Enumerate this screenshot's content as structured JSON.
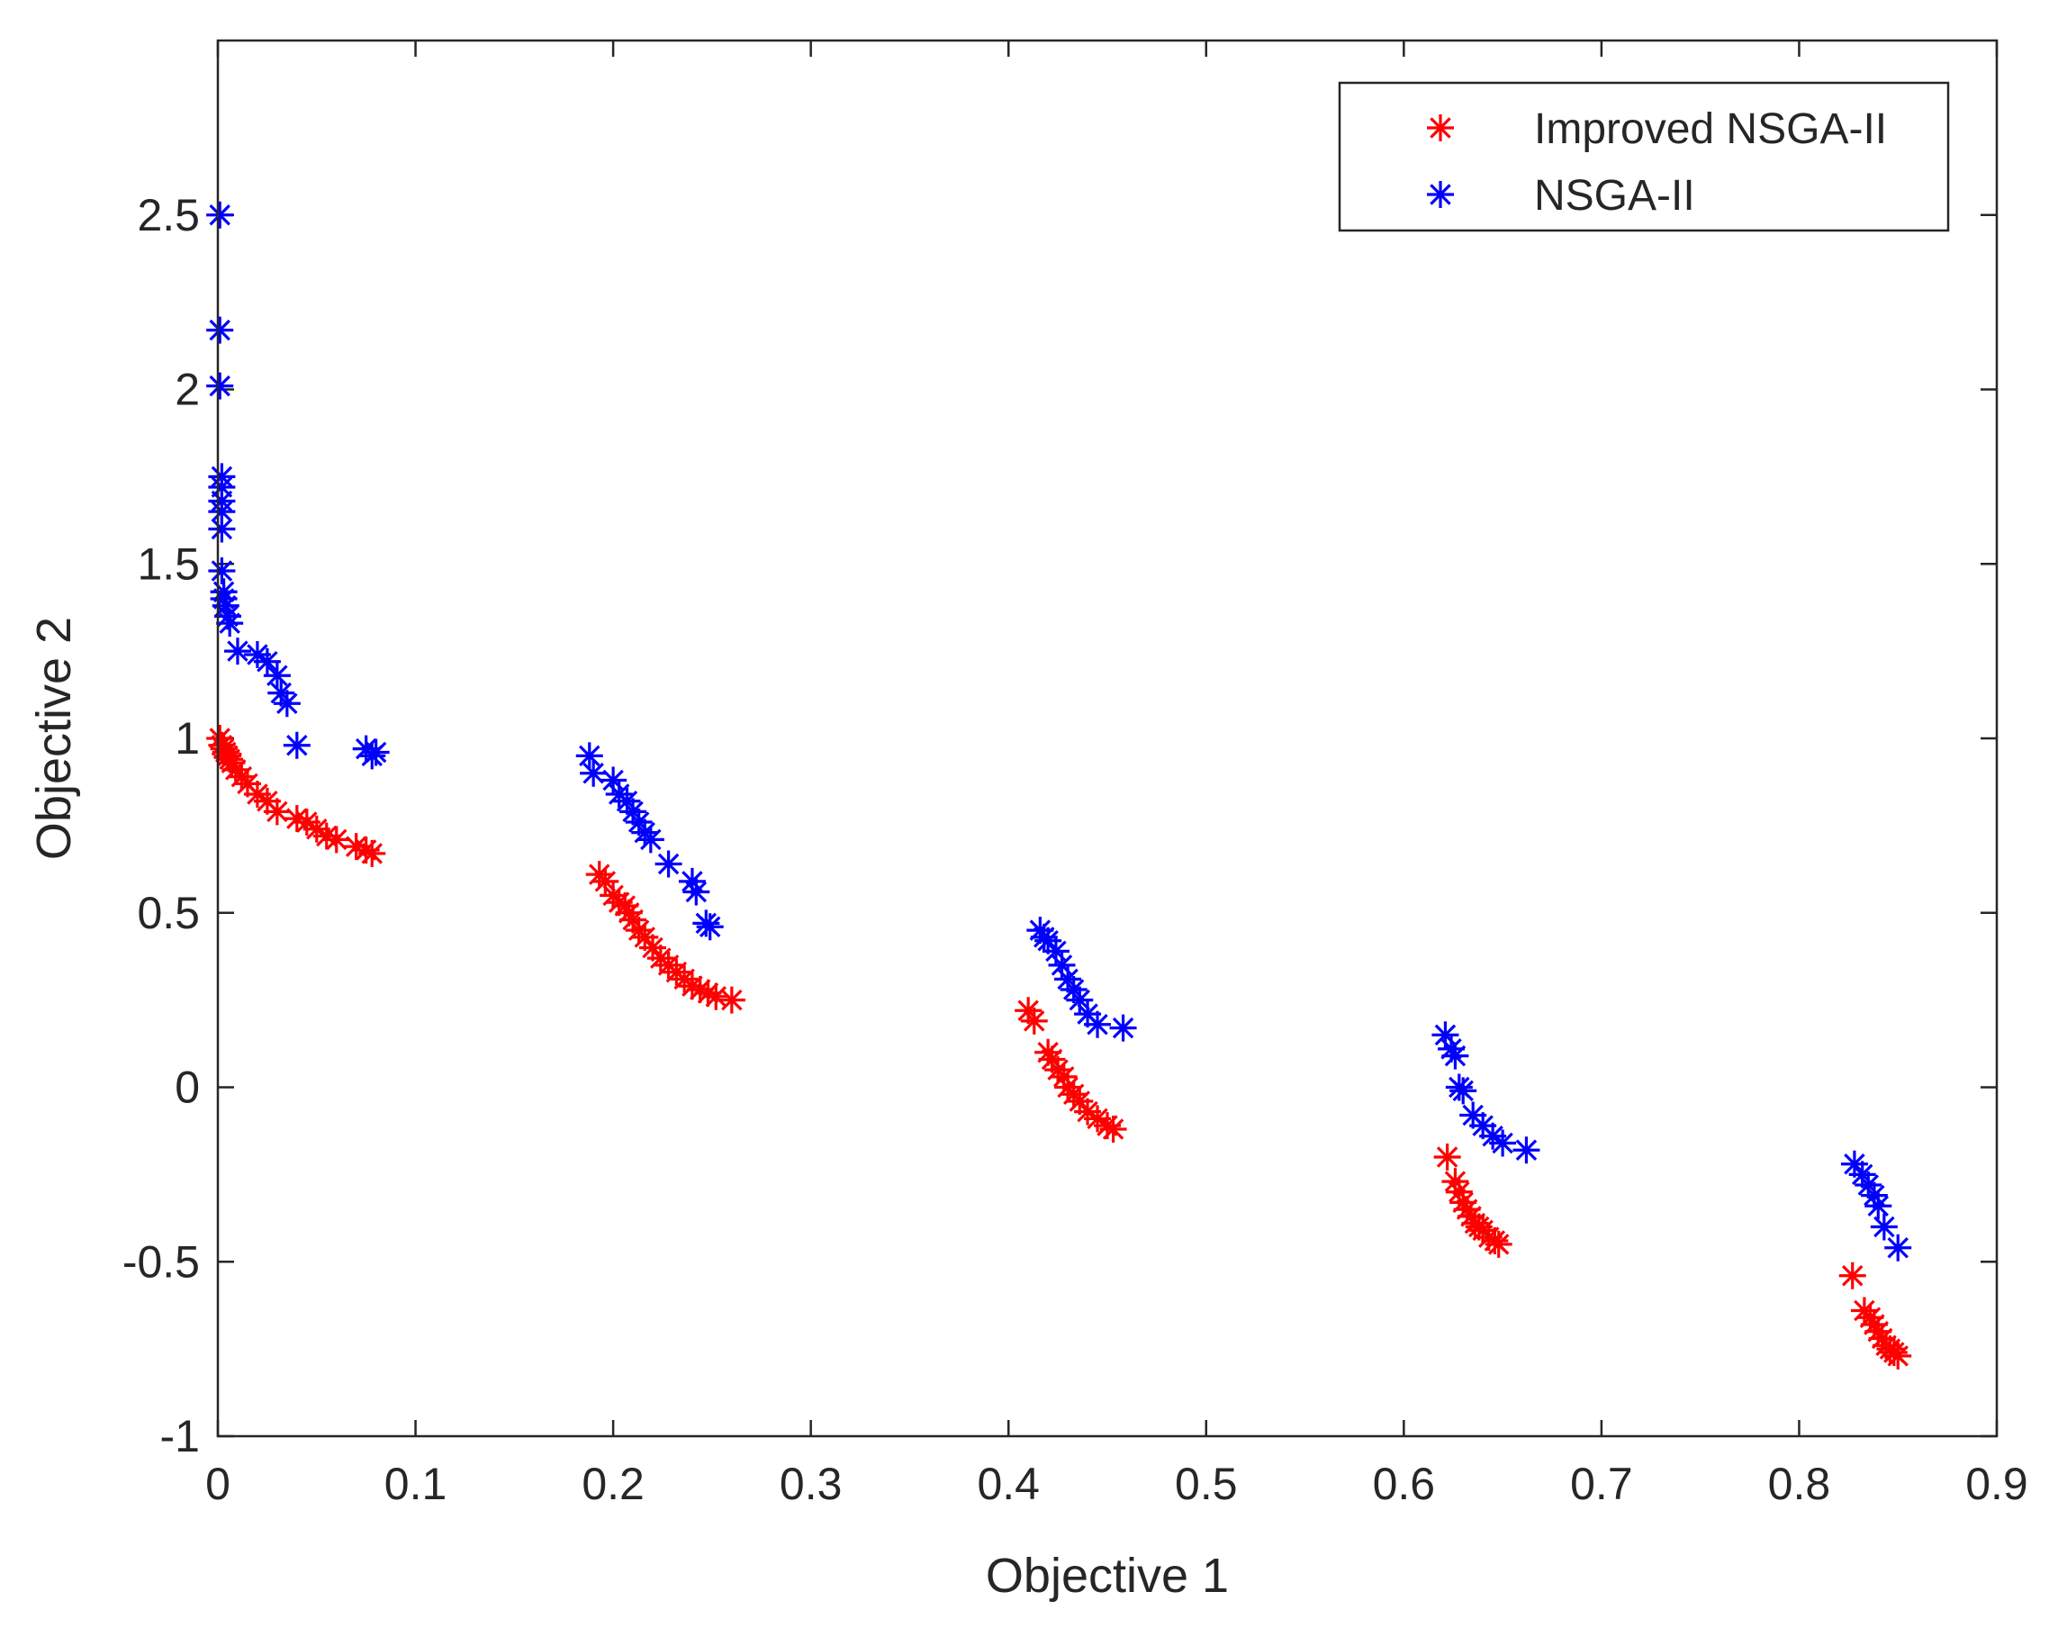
{
  "colors": {
    "improved": "#ff0000",
    "nsga": "#0000ff",
    "axis": "#262626",
    "background": "#ffffff"
  },
  "chart_data": {
    "type": "scatter",
    "title": "",
    "xlabel": "Objective 1",
    "ylabel": "Objective 2",
    "xlim": [
      0,
      0.9
    ],
    "ylim": [
      -1,
      3
    ],
    "xticks": [
      0,
      0.1,
      0.2,
      0.3,
      0.4,
      0.5,
      0.6,
      0.7,
      0.8,
      0.9
    ],
    "xtick_labels": [
      "0",
      "0.1",
      "0.2",
      "0.3",
      "0.4",
      "0.5",
      "0.6",
      "0.7",
      "0.8",
      "0.9"
    ],
    "yticks": [
      -1,
      -0.5,
      0,
      0.5,
      1,
      1.5,
      2,
      2.5
    ],
    "ytick_labels": [
      "-1",
      "-0.5",
      "0",
      "0.5",
      "1",
      "1.5",
      "2",
      "2.5"
    ],
    "marker": "asterisk",
    "legend": {
      "position": "top-right",
      "entries": [
        {
          "label": "Improved NSGA-II",
          "color": "#ff0000"
        },
        {
          "label": "NSGA-II",
          "color": "#0000ff"
        }
      ]
    },
    "series": [
      {
        "name": "Improved NSGA-II",
        "color": "#ff0000",
        "x": [
          0.001,
          0.002,
          0.003,
          0.004,
          0.005,
          0.006,
          0.007,
          0.009,
          0.012,
          0.015,
          0.02,
          0.025,
          0.03,
          0.04,
          0.045,
          0.05,
          0.055,
          0.06,
          0.07,
          0.075,
          0.078,
          0.193,
          0.196,
          0.2,
          0.203,
          0.206,
          0.208,
          0.21,
          0.213,
          0.216,
          0.22,
          0.224,
          0.228,
          0.232,
          0.236,
          0.24,
          0.244,
          0.248,
          0.252,
          0.26,
          0.41,
          0.413,
          0.42,
          0.422,
          0.425,
          0.428,
          0.43,
          0.433,
          0.436,
          0.44,
          0.445,
          0.45,
          0.453,
          0.622,
          0.626,
          0.628,
          0.63,
          0.632,
          0.634,
          0.636,
          0.638,
          0.64,
          0.643,
          0.646,
          0.648,
          0.827,
          0.833,
          0.836,
          0.838,
          0.84,
          0.842,
          0.844,
          0.846,
          0.848,
          0.85
        ],
        "y": [
          1.0,
          0.98,
          0.97,
          0.96,
          0.95,
          0.94,
          0.93,
          0.91,
          0.89,
          0.87,
          0.84,
          0.82,
          0.79,
          0.77,
          0.76,
          0.74,
          0.72,
          0.71,
          0.69,
          0.68,
          0.67,
          0.61,
          0.59,
          0.55,
          0.53,
          0.52,
          0.5,
          0.48,
          0.45,
          0.43,
          0.4,
          0.37,
          0.35,
          0.33,
          0.31,
          0.29,
          0.28,
          0.27,
          0.26,
          0.25,
          0.22,
          0.19,
          0.1,
          0.08,
          0.05,
          0.03,
          0.0,
          -0.02,
          -0.04,
          -0.07,
          -0.09,
          -0.11,
          -0.12,
          -0.2,
          -0.27,
          -0.3,
          -0.33,
          -0.35,
          -0.37,
          -0.39,
          -0.4,
          -0.41,
          -0.43,
          -0.44,
          -0.45,
          -0.54,
          -0.64,
          -0.66,
          -0.68,
          -0.7,
          -0.72,
          -0.74,
          -0.75,
          -0.76,
          -0.77
        ]
      },
      {
        "name": "NSGA-II",
        "color": "#0000ff",
        "x": [
          0.001,
          0.001,
          0.001,
          0.002,
          0.002,
          0.002,
          0.002,
          0.002,
          0.002,
          0.003,
          0.003,
          0.004,
          0.005,
          0.006,
          0.01,
          0.02,
          0.025,
          0.03,
          0.032,
          0.035,
          0.04,
          0.075,
          0.078,
          0.08,
          0.188,
          0.19,
          0.2,
          0.203,
          0.207,
          0.21,
          0.213,
          0.216,
          0.219,
          0.228,
          0.24,
          0.242,
          0.247,
          0.249,
          0.416,
          0.418,
          0.42,
          0.424,
          0.427,
          0.43,
          0.433,
          0.436,
          0.44,
          0.445,
          0.458,
          0.621,
          0.624,
          0.626,
          0.628,
          0.63,
          0.635,
          0.64,
          0.645,
          0.65,
          0.662,
          0.828,
          0.832,
          0.835,
          0.838,
          0.84,
          0.843,
          0.85
        ],
        "y": [
          2.5,
          2.17,
          2.01,
          1.75,
          1.72,
          1.68,
          1.65,
          1.6,
          1.48,
          1.42,
          1.4,
          1.38,
          1.35,
          1.33,
          1.25,
          1.24,
          1.22,
          1.18,
          1.13,
          1.1,
          0.98,
          0.97,
          0.95,
          0.96,
          0.95,
          0.9,
          0.88,
          0.84,
          0.82,
          0.79,
          0.76,
          0.73,
          0.71,
          0.64,
          0.59,
          0.56,
          0.47,
          0.46,
          0.45,
          0.43,
          0.42,
          0.39,
          0.35,
          0.31,
          0.28,
          0.25,
          0.21,
          0.18,
          0.17,
          0.15,
          0.11,
          0.09,
          0.0,
          -0.01,
          -0.08,
          -0.11,
          -0.14,
          -0.16,
          -0.18,
          -0.22,
          -0.25,
          -0.28,
          -0.31,
          -0.34,
          -0.4,
          -0.46
        ]
      }
    ]
  }
}
